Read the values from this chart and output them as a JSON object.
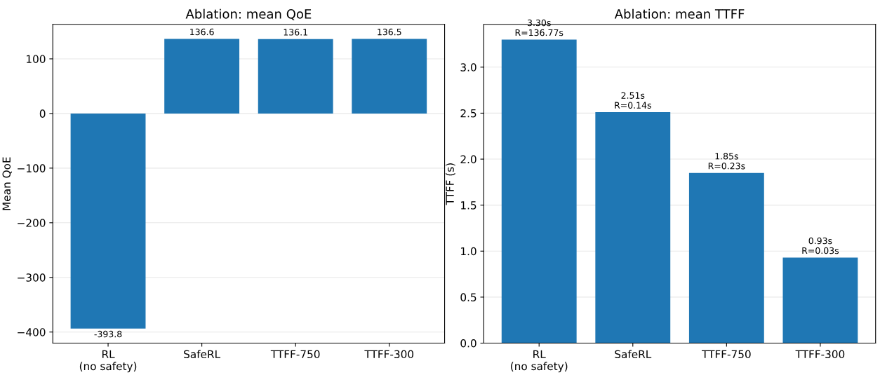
{
  "chart_data": [
    {
      "type": "bar",
      "title": "Ablation: mean QoE",
      "ylabel": "Mean QoE",
      "categories": [
        "RL\n(no safety)",
        "SafeRL",
        "TTFF-750",
        "TTFF-300"
      ],
      "series": [
        {
          "color": "#1f77b4",
          "values": [
            -393.8,
            136.6,
            136.1,
            136.5
          ],
          "value_labels": [
            "-393.8",
            "136.6",
            "136.1",
            "136.5"
          ]
        }
      ],
      "ylim": [
        -420.3,
        163.1
      ],
      "yticks": [
        {
          "value": -400,
          "label": "−400"
        },
        {
          "value": -300,
          "label": "−300"
        },
        {
          "value": -200,
          "label": "−200"
        },
        {
          "value": -100,
          "label": "−100"
        },
        0,
        100
      ],
      "grid": "y",
      "legend": false
    },
    {
      "type": "bar",
      "title": "Ablation: mean TTFF",
      "ylabel": "TTFF (s)",
      "categories": [
        "RL\n(no safety)",
        "SafeRL",
        "TTFF-750",
        "TTFF-300"
      ],
      "series": [
        {
          "color": "#1f77b4",
          "values": [
            3.3,
            2.51,
            1.85,
            0.93
          ],
          "value_labels": [
            "3.30s\nR=136.77s",
            "2.51s\nR=0.14s",
            "1.85s\nR=0.23s",
            "0.93s\nR=0.03s"
          ]
        }
      ],
      "ylim": [
        0,
        3.465
      ],
      "yticks": [
        {
          "value": 0,
          "label": "0.0"
        },
        {
          "value": 0.5,
          "label": "0.5"
        },
        {
          "value": 1.0,
          "label": "1.0"
        },
        {
          "value": 1.5,
          "label": "1.5"
        },
        {
          "value": 2.0,
          "label": "2.0"
        },
        {
          "value": 2.5,
          "label": "2.5"
        },
        {
          "value": 3.0,
          "label": "3.0"
        }
      ],
      "grid": "y",
      "legend": false
    }
  ]
}
